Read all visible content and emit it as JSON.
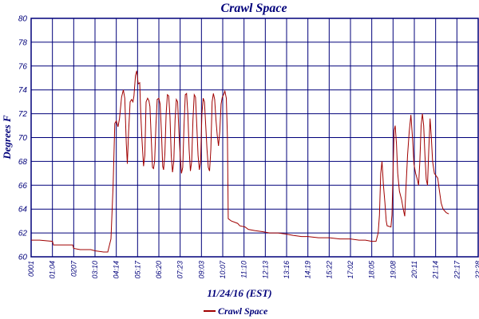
{
  "chart_data": {
    "type": "line",
    "title": "Crawl Space",
    "xlabel": "11/24/16 (EST)",
    "ylabel": "Degrees F",
    "ylim": [
      60,
      80
    ],
    "yticks": [
      60,
      62,
      64,
      66,
      68,
      70,
      72,
      74,
      76,
      78,
      80
    ],
    "x_tick_labels": [
      "0001",
      "01:04",
      "0207",
      "03:10",
      "04:14",
      "05:17",
      "06:20",
      "07:23",
      "09:03",
      "10:07",
      "11:10",
      "12:13",
      "13:16",
      "14:19",
      "15:22",
      "17:02",
      "18:05",
      "19:08",
      "20:11",
      "21:14",
      "22:17",
      "22:28"
    ],
    "grid": true,
    "legend_position": "bottom-center",
    "colors": {
      "line": "#a00000",
      "grid": "#00007a",
      "text": "#00007a"
    },
    "series": [
      {
        "name": "Crawl Space",
        "points": [
          [
            0.0,
            61.4
          ],
          [
            0.4,
            61.4
          ],
          [
            1.0,
            61.3
          ],
          [
            1.05,
            61.0
          ],
          [
            1.6,
            61.0
          ],
          [
            1.95,
            61.0
          ],
          [
            2.0,
            60.7
          ],
          [
            2.3,
            60.6
          ],
          [
            2.8,
            60.6
          ],
          [
            3.0,
            60.5
          ],
          [
            3.4,
            60.4
          ],
          [
            3.6,
            60.4
          ],
          [
            3.75,
            61.5
          ],
          [
            3.85,
            66.0
          ],
          [
            3.93,
            71.2
          ],
          [
            4.0,
            71.4
          ],
          [
            4.08,
            70.9
          ],
          [
            4.15,
            71.6
          ],
          [
            4.25,
            73.4
          ],
          [
            4.33,
            74.0
          ],
          [
            4.4,
            73.3
          ],
          [
            4.47,
            69.5
          ],
          [
            4.52,
            67.8
          ],
          [
            4.58,
            70.5
          ],
          [
            4.65,
            73.0
          ],
          [
            4.72,
            73.2
          ],
          [
            4.78,
            73.0
          ],
          [
            4.83,
            73.5
          ],
          [
            4.9,
            75.2
          ],
          [
            4.96,
            75.6
          ],
          [
            5.03,
            74.5
          ],
          [
            5.1,
            74.6
          ],
          [
            5.15,
            72.0
          ],
          [
            5.2,
            70.0
          ],
          [
            5.28,
            67.6
          ],
          [
            5.34,
            68.5
          ],
          [
            5.4,
            73.0
          ],
          [
            5.47,
            73.3
          ],
          [
            5.53,
            73.1
          ],
          [
            5.58,
            72.6
          ],
          [
            5.64,
            70.0
          ],
          [
            5.7,
            67.5
          ],
          [
            5.75,
            67.4
          ],
          [
            5.8,
            68.0
          ],
          [
            5.86,
            71.0
          ],
          [
            5.92,
            73.2
          ],
          [
            6.0,
            73.3
          ],
          [
            6.06,
            72.8
          ],
          [
            6.12,
            70.5
          ],
          [
            6.18,
            67.6
          ],
          [
            6.22,
            67.3
          ],
          [
            6.28,
            68.6
          ],
          [
            6.34,
            72.0
          ],
          [
            6.4,
            73.6
          ],
          [
            6.46,
            73.5
          ],
          [
            6.52,
            71.8
          ],
          [
            6.58,
            68.5
          ],
          [
            6.64,
            67.1
          ],
          [
            6.7,
            68.0
          ],
          [
            6.76,
            71.5
          ],
          [
            6.82,
            73.2
          ],
          [
            6.88,
            73.0
          ],
          [
            6.94,
            70.5
          ],
          [
            7.0,
            68.5
          ],
          [
            7.06,
            67.0
          ],
          [
            7.12,
            67.5
          ],
          [
            7.18,
            71.0
          ],
          [
            7.24,
            73.6
          ],
          [
            7.3,
            73.7
          ],
          [
            7.36,
            72.0
          ],
          [
            7.42,
            69.0
          ],
          [
            7.48,
            67.2
          ],
          [
            7.54,
            68.0
          ],
          [
            7.6,
            71.5
          ],
          [
            7.66,
            73.6
          ],
          [
            7.72,
            73.4
          ],
          [
            7.78,
            71.0
          ],
          [
            7.84,
            68.5
          ],
          [
            7.9,
            67.3
          ],
          [
            7.96,
            68.0
          ],
          [
            8.02,
            72.0
          ],
          [
            8.08,
            73.3
          ],
          [
            8.14,
            73.0
          ],
          [
            8.2,
            71.0
          ],
          [
            8.26,
            69.0
          ],
          [
            8.32,
            67.5
          ],
          [
            8.38,
            67.2
          ],
          [
            8.44,
            69.0
          ],
          [
            8.5,
            73.0
          ],
          [
            8.56,
            73.7
          ],
          [
            8.62,
            73.2
          ],
          [
            8.68,
            71.5
          ],
          [
            8.74,
            70.2
          ],
          [
            8.8,
            69.3
          ],
          [
            8.86,
            70.5
          ],
          [
            8.92,
            72.8
          ],
          [
            8.98,
            73.4
          ],
          [
            9.04,
            73.6
          ],
          [
            9.1,
            73.9
          ],
          [
            9.17,
            73.3
          ],
          [
            9.22,
            70.0
          ],
          [
            9.26,
            63.2
          ],
          [
            9.4,
            63.0
          ],
          [
            9.7,
            62.8
          ],
          [
            9.8,
            62.6
          ],
          [
            10.05,
            62.5
          ],
          [
            10.2,
            62.3
          ],
          [
            10.5,
            62.2
          ],
          [
            10.9,
            62.1
          ],
          [
            11.2,
            62.0
          ],
          [
            11.6,
            62.0
          ],
          [
            12.0,
            61.9
          ],
          [
            12.3,
            61.8
          ],
          [
            12.7,
            61.7
          ],
          [
            13.0,
            61.7
          ],
          [
            13.5,
            61.6
          ],
          [
            14.0,
            61.6
          ],
          [
            14.5,
            61.5
          ],
          [
            15.0,
            61.5
          ],
          [
            15.4,
            61.4
          ],
          [
            15.7,
            61.4
          ],
          [
            16.0,
            61.3
          ],
          [
            16.2,
            61.3
          ],
          [
            16.3,
            62.0
          ],
          [
            16.36,
            63.5
          ],
          [
            16.42,
            67.0
          ],
          [
            16.48,
            68.0
          ],
          [
            16.55,
            66.0
          ],
          [
            16.62,
            64.5
          ],
          [
            16.68,
            63.0
          ],
          [
            16.72,
            62.6
          ],
          [
            16.9,
            62.5
          ],
          [
            16.95,
            63.5
          ],
          [
            17.0,
            67.0
          ],
          [
            17.05,
            70.6
          ],
          [
            17.1,
            71.0
          ],
          [
            17.16,
            69.5
          ],
          [
            17.22,
            67.0
          ],
          [
            17.3,
            65.5
          ],
          [
            17.4,
            64.8
          ],
          [
            17.48,
            64.0
          ],
          [
            17.55,
            63.4
          ],
          [
            17.6,
            65.5
          ],
          [
            17.68,
            68.5
          ],
          [
            17.76,
            70.5
          ],
          [
            17.84,
            71.9
          ],
          [
            17.92,
            69.8
          ],
          [
            17.98,
            67.8
          ],
          [
            18.06,
            67.0
          ],
          [
            18.14,
            66.5
          ],
          [
            18.2,
            66.0
          ],
          [
            18.26,
            68.0
          ],
          [
            18.32,
            71.0
          ],
          [
            18.38,
            72.0
          ],
          [
            18.44,
            71.0
          ],
          [
            18.5,
            68.5
          ],
          [
            18.56,
            66.5
          ],
          [
            18.62,
            66.0
          ],
          [
            18.68,
            69.0
          ],
          [
            18.74,
            71.6
          ],
          [
            18.8,
            70.0
          ],
          [
            18.86,
            68.0
          ],
          [
            18.94,
            67.0
          ],
          [
            19.02,
            66.8
          ],
          [
            19.1,
            66.6
          ],
          [
            19.18,
            65.5
          ],
          [
            19.26,
            64.5
          ],
          [
            19.35,
            64.0
          ],
          [
            19.5,
            63.7
          ],
          [
            19.62,
            63.6
          ]
        ]
      }
    ]
  }
}
